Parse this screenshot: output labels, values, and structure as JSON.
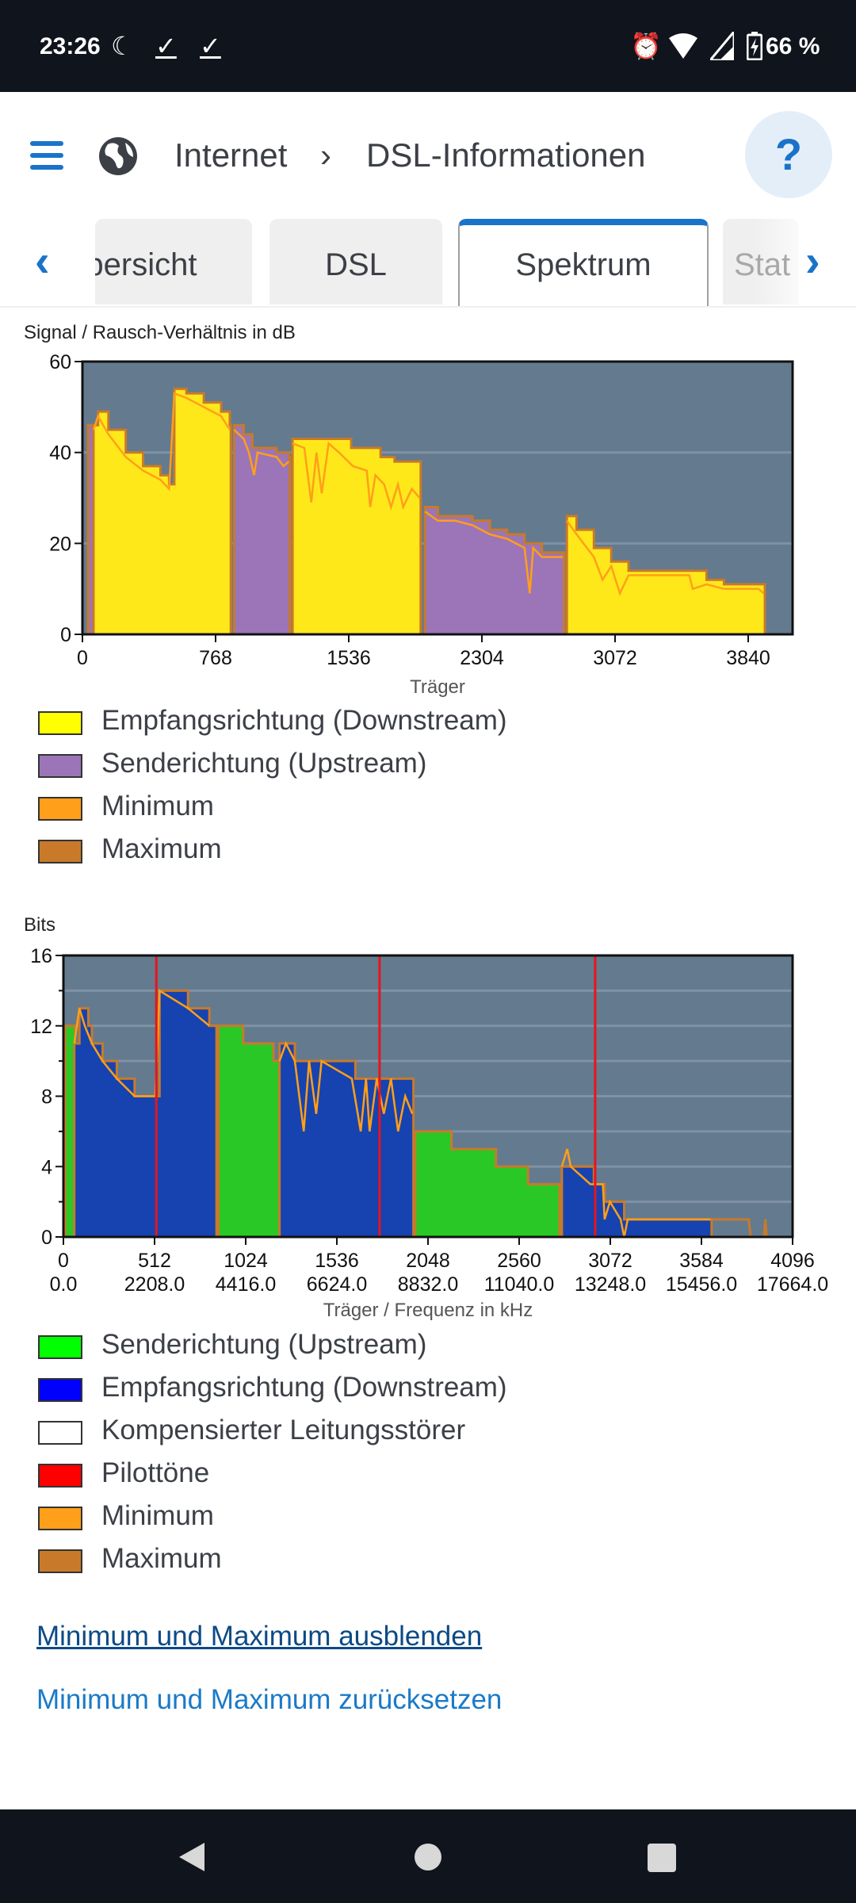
{
  "status_bar": {
    "time": "23:26",
    "battery": "66 %",
    "icons": [
      "night-mode-icon",
      "check-icon",
      "check-icon",
      "alarm-icon",
      "wifi-icon",
      "signal-icon",
      "battery-charging-icon"
    ]
  },
  "header": {
    "menu_icon": "hamburger-icon",
    "app_icon": "globe-icon",
    "breadcrumb": [
      "Internet",
      "DSL-Informationen"
    ],
    "help_label": "?"
  },
  "tabs": [
    {
      "label": "Übersicht",
      "active": false
    },
    {
      "label": "DSL",
      "active": false
    },
    {
      "label": "Spektrum",
      "active": true
    },
    {
      "label": "Stat",
      "active": false
    }
  ],
  "colors": {
    "accent": "#1a73c8",
    "plot_bg": "#647a8f",
    "downstream_snr": "#ffe81a",
    "upstream_snr": "#9c74b8",
    "upstream_bits": "#2ac826",
    "downstream_bits": "#1643b0",
    "pilot": "#e8141c",
    "minimum": "#ff9f1a",
    "maximum": "#c87a2a"
  },
  "chart_data": [
    {
      "type": "area",
      "title": "Signal / Rausch-Verhältnis in dB",
      "xlabel": "Träger",
      "ylabel": "Signal / Rausch-Verhältnis in dB",
      "xlim": [
        0,
        4096
      ],
      "ylim": [
        0,
        60
      ],
      "xticks": [
        "0",
        "768",
        "1536",
        "2304",
        "3072",
        "3840"
      ],
      "xtick_values": [
        0,
        768,
        1536,
        2304,
        3072,
        3840
      ],
      "yticks": [
        0,
        20,
        40,
        60
      ],
      "grid": true,
      "legend": [
        {
          "label": "Empfangsrichtung (Downstream)",
          "color": "#ffff00"
        },
        {
          "label": "Senderichtung (Upstream)",
          "color": "#9c74b8"
        },
        {
          "label": "Minimum",
          "color": "#ff9f1a"
        },
        {
          "label": "Maximum",
          "color": "#c87a2a"
        }
      ],
      "bands": [
        {
          "dir": "upstream",
          "points": [
            [
              32,
              46
            ],
            [
              60,
              46
            ]
          ]
        },
        {
          "dir": "downstream",
          "points": [
            [
              64,
              46
            ],
            [
              90,
              49
            ],
            [
              150,
              45
            ],
            [
              250,
              40
            ],
            [
              350,
              37
            ],
            [
              450,
              35
            ],
            [
              500,
              33
            ],
            [
              530,
              54
            ],
            [
              600,
              53
            ],
            [
              700,
              51
            ],
            [
              800,
              49
            ],
            [
              850,
              46
            ]
          ],
          "min": [
            [
              64,
              45
            ],
            [
              90,
              48
            ],
            [
              150,
              44
            ],
            [
              250,
              39
            ],
            [
              350,
              36
            ],
            [
              450,
              34
            ],
            [
              500,
              32
            ],
            [
              530,
              53
            ],
            [
              600,
              52
            ],
            [
              700,
              50
            ],
            [
              800,
              48
            ],
            [
              850,
              45
            ]
          ]
        },
        {
          "dir": "upstream",
          "points": [
            [
              875,
              46
            ],
            [
              930,
              44
            ],
            [
              980,
              41
            ],
            [
              1060,
              41
            ],
            [
              1120,
              40
            ],
            [
              1190,
              39
            ]
          ],
          "min": [
            [
              875,
              45
            ],
            [
              930,
              43
            ],
            [
              960,
              40
            ],
            [
              990,
              35
            ],
            [
              1010,
              40
            ],
            [
              1120,
              39
            ],
            [
              1160,
              37
            ],
            [
              1190,
              38
            ]
          ]
        },
        {
          "dir": "downstream",
          "points": [
            [
              1212,
              43
            ],
            [
              1300,
              43
            ],
            [
              1480,
              43
            ],
            [
              1550,
              41
            ],
            [
              1650,
              41
            ],
            [
              1720,
              39
            ],
            [
              1800,
              38
            ],
            [
              1945,
              38
            ]
          ],
          "min": [
            [
              1212,
              42
            ],
            [
              1280,
              41
            ],
            [
              1320,
              29
            ],
            [
              1350,
              40
            ],
            [
              1380,
              31
            ],
            [
              1420,
              42
            ],
            [
              1480,
              40
            ],
            [
              1560,
              37
            ],
            [
              1640,
              36
            ],
            [
              1660,
              28
            ],
            [
              1690,
              35
            ],
            [
              1740,
              33
            ],
            [
              1780,
              28
            ],
            [
              1820,
              33
            ],
            [
              1850,
              28
            ],
            [
              1900,
              32
            ],
            [
              1945,
              30
            ]
          ]
        },
        {
          "dir": "upstream",
          "points": [
            [
              1976,
              28
            ],
            [
              2050,
              26
            ],
            [
              2150,
              26
            ],
            [
              2250,
              25
            ],
            [
              2350,
              23
            ],
            [
              2450,
              22
            ],
            [
              2550,
              20
            ],
            [
              2650,
              18
            ],
            [
              2772,
              18
            ]
          ],
          "min": [
            [
              1976,
              27
            ],
            [
              2050,
              25
            ],
            [
              2150,
              25
            ],
            [
              2250,
              24
            ],
            [
              2350,
              22
            ],
            [
              2450,
              21
            ],
            [
              2550,
              19
            ],
            [
              2580,
              9
            ],
            [
              2600,
              19
            ],
            [
              2650,
              17
            ],
            [
              2772,
              17
            ]
          ]
        },
        {
          "dir": "downstream",
          "points": [
            [
              2794,
              26
            ],
            [
              2850,
              23
            ],
            [
              2950,
              19
            ],
            [
              3050,
              16
            ],
            [
              3150,
              14
            ],
            [
              3300,
              14
            ],
            [
              3500,
              14
            ],
            [
              3600,
              12
            ],
            [
              3700,
              11
            ],
            [
              3930,
              11
            ]
          ],
          "min": [
            [
              2794,
              25
            ],
            [
              2850,
              22
            ],
            [
              2950,
              17
            ],
            [
              3000,
              12
            ],
            [
              3050,
              15
            ],
            [
              3100,
              9
            ],
            [
              3150,
              13
            ],
            [
              3300,
              13
            ],
            [
              3500,
              13
            ],
            [
              3520,
              10
            ],
            [
              3600,
              11
            ],
            [
              3700,
              10
            ],
            [
              3900,
              10
            ],
            [
              3930,
              9
            ]
          ]
        }
      ]
    },
    {
      "type": "area",
      "title": "Bits",
      "xlabel": "Träger / Frequenz in kHz",
      "ylabel": "Bits",
      "xlim": [
        0,
        4096
      ],
      "ylim": [
        0,
        16
      ],
      "xticks": [
        "0",
        "512",
        "1024",
        "1536",
        "2048",
        "2560",
        "3072",
        "3584",
        "4096"
      ],
      "xtick_values": [
        0,
        512,
        1024,
        1536,
        2048,
        2560,
        3072,
        3584,
        4096
      ],
      "xticks_khz": [
        "0.0",
        "2208.0",
        "4416.0",
        "6624.0",
        "8832.0",
        "11040.0",
        "13248.0",
        "15456.0",
        "17664.0"
      ],
      "yticks": [
        0,
        4,
        8,
        12,
        16
      ],
      "grid": true,
      "pilot_tones": [
        522,
        1776,
        2987
      ],
      "legend": [
        {
          "label": "Senderichtung (Upstream)",
          "color": "#00ff00"
        },
        {
          "label": "Empfangsrichtung (Downstream)",
          "color": "#0000ff"
        },
        {
          "label": "Kompensierter Leitungsstörer",
          "color": "#ffffff"
        },
        {
          "label": "Pilottöne",
          "color": "#ff0000"
        },
        {
          "label": "Minimum",
          "color": "#ff9f1a"
        },
        {
          "label": "Maximum",
          "color": "#c87a2a"
        }
      ],
      "bands": [
        {
          "dir": "upstream",
          "points": [
            [
              10,
              12
            ],
            [
              60,
              12
            ]
          ]
        },
        {
          "dir": "downstream",
          "points": [
            [
              61,
              11
            ],
            [
              90,
              13
            ],
            [
              120,
              13
            ],
            [
              140,
              12
            ],
            [
              160,
              11
            ],
            [
              220,
              10
            ],
            [
              300,
              9
            ],
            [
              400,
              8
            ],
            [
              516,
              8
            ],
            [
              540,
              14
            ],
            [
              700,
              13
            ],
            [
              820,
              12
            ],
            [
              854,
              12
            ]
          ],
          "min": [
            [
              61,
              11
            ],
            [
              90,
              13
            ],
            [
              120,
              12
            ],
            [
              160,
              11
            ],
            [
              220,
              10
            ],
            [
              300,
              9
            ],
            [
              400,
              8
            ],
            [
              516,
              8
            ],
            [
              540,
              14
            ],
            [
              700,
              13
            ],
            [
              820,
              12
            ]
          ]
        },
        {
          "dir": "upstream",
          "points": [
            [
              870,
              12
            ],
            [
              1000,
              12
            ],
            [
              1010,
              11
            ],
            [
              1170,
              11
            ],
            [
              1180,
              10
            ],
            [
              1208,
              10
            ]
          ]
        },
        {
          "dir": "downstream",
          "points": [
            [
              1214,
              11
            ],
            [
              1300,
              10
            ],
            [
              1450,
              10
            ],
            [
              1620,
              10
            ],
            [
              1640,
              9
            ],
            [
              1780,
              9
            ],
            [
              1880,
              9
            ],
            [
              1960,
              9
            ]
          ],
          "min": [
            [
              1214,
              10
            ],
            [
              1250,
              11
            ],
            [
              1300,
              10
            ],
            [
              1350,
              6
            ],
            [
              1380,
              10
            ],
            [
              1420,
              7
            ],
            [
              1450,
              10
            ],
            [
              1620,
              9
            ],
            [
              1670,
              6
            ],
            [
              1700,
              9
            ],
            [
              1720,
              6
            ],
            [
              1760,
              9
            ],
            [
              1800,
              7
            ],
            [
              1840,
              9
            ],
            [
              1880,
              6
            ],
            [
              1920,
              8
            ],
            [
              1960,
              7
            ]
          ]
        },
        {
          "dir": "upstream",
          "points": [
            [
              1976,
              6
            ],
            [
              2170,
              6
            ],
            [
              2180,
              5
            ],
            [
              2420,
              5
            ],
            [
              2430,
              4
            ],
            [
              2600,
              4
            ],
            [
              2610,
              3
            ],
            [
              2781,
              3
            ]
          ]
        },
        {
          "dir": "downstream",
          "points": [
            [
              2800,
              4
            ],
            [
              2960,
              4
            ],
            [
              2980,
              3
            ],
            [
              3030,
              3
            ],
            [
              3040,
              2
            ],
            [
              3130,
              2
            ],
            [
              3150,
              1
            ],
            [
              3635,
              1
            ]
          ],
          "min": [
            [
              2800,
              4
            ],
            [
              2830,
              5
            ],
            [
              2850,
              4
            ],
            [
              2960,
              3
            ],
            [
              3030,
              3
            ],
            [
              3040,
              1
            ],
            [
              3070,
              2
            ],
            [
              3130,
              1
            ],
            [
              3150,
              0
            ],
            [
              3170,
              1
            ],
            [
              3635,
              1
            ]
          ]
        }
      ],
      "max_tail": [
        [
          3635,
          1
        ],
        [
          3850,
          1
        ],
        [
          3860,
          0
        ],
        [
          3935,
          0
        ],
        [
          3943,
          1
        ],
        [
          3950,
          0
        ]
      ]
    }
  ],
  "links": {
    "toggle_minmax": "Minimum und Maximum ausblenden",
    "reset_minmax": "Minimum und Maximum zurücksetzen"
  },
  "nav_bar": {
    "icons": [
      "back-icon",
      "home-icon",
      "recents-icon"
    ]
  }
}
